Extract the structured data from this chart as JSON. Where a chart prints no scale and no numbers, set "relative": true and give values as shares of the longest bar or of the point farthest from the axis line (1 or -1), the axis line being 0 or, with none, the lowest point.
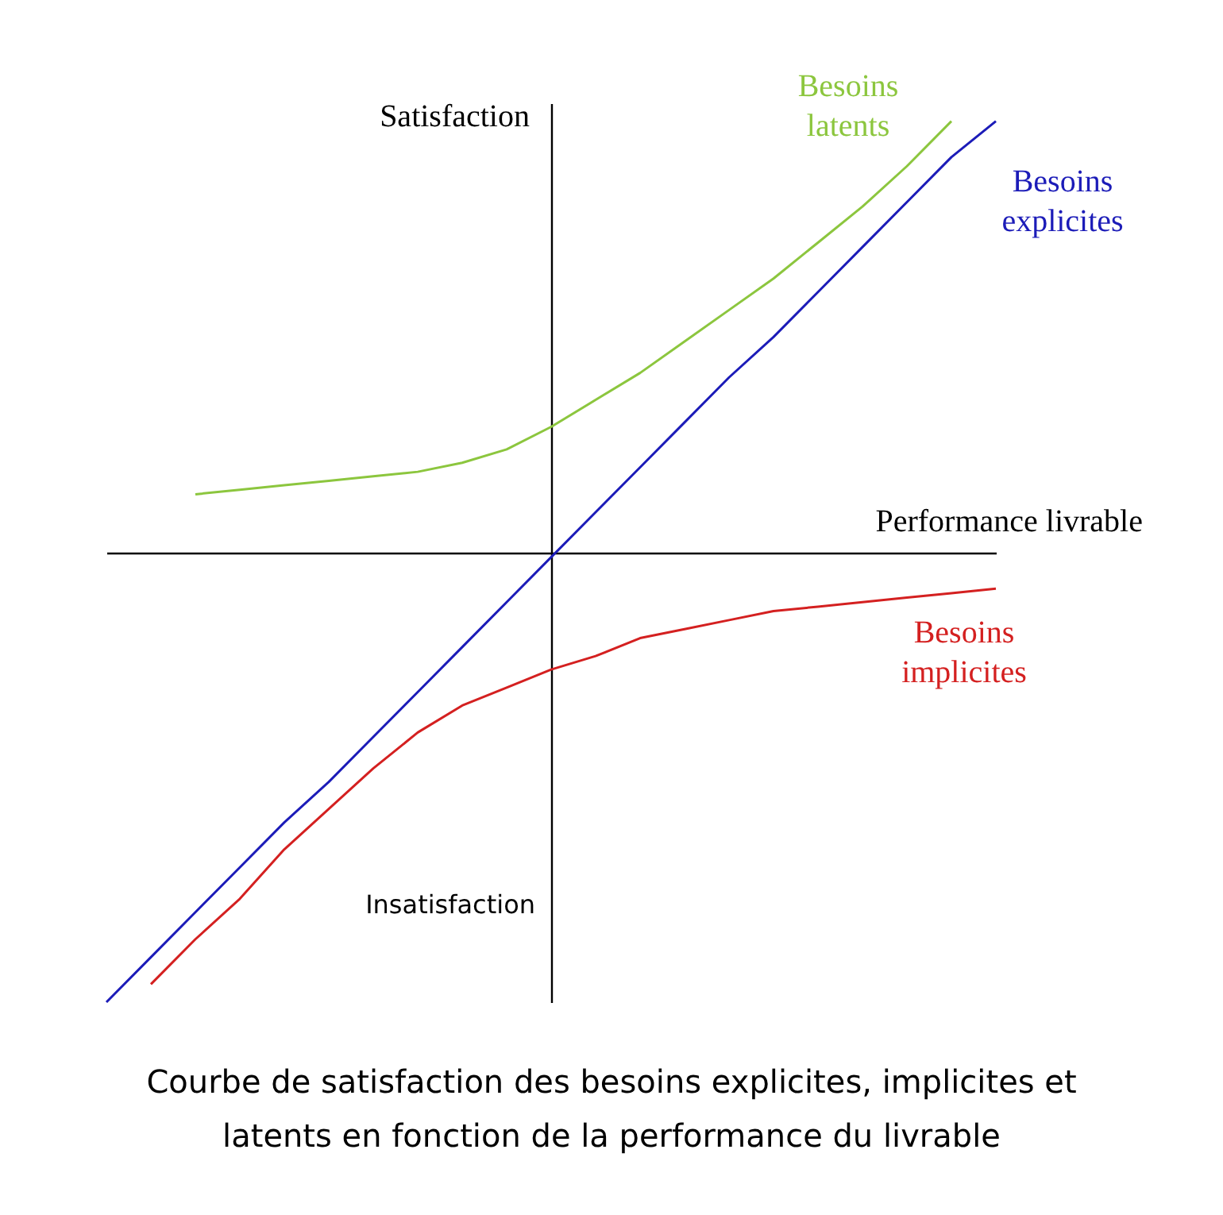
{
  "chart_data": {
    "type": "line",
    "relative": true,
    "legend": false,
    "grid": false,
    "marker": "none",
    "line_style": "solid",
    "xlabel": "Performance livrable",
    "ylabel": "Satisfaction",
    "annotations": [
      "Insatisfaction",
      "Courbe de satisfaction des besoins explicites, implicites et latents en fonction de la performance du livrable"
    ],
    "categories": [
      null,
      null,
      null,
      null,
      null,
      null,
      null,
      null,
      null,
      null,
      null,
      null,
      null,
      null,
      null,
      null,
      null,
      null,
      null,
      null,
      null
    ],
    "series": [
      {
        "name": "Besoins explicites",
        "color": "#1c1cb8",
        "values": [
          -1,
          -0.9,
          -0.8,
          -0.7,
          -0.6,
          -0.51,
          -0.41,
          -0.31,
          -0.21,
          -0.11,
          -0.01,
          0.09,
          0.19,
          0.29,
          0.39,
          0.48,
          0.58,
          0.68,
          0.78,
          0.88,
          0.96
        ]
      },
      {
        "name": "Besoins latents",
        "color": "#8cc63e",
        "values": [
          null,
          null,
          0.13,
          0.14,
          0.15,
          0.16,
          0.17,
          0.18,
          0.2,
          0.23,
          0.28,
          0.34,
          0.4,
          0.47,
          0.54,
          0.61,
          0.69,
          0.77,
          0.86,
          0.96,
          null
        ]
      },
      {
        "name": "Besoins implicites",
        "color": "#d42020",
        "values": [
          null,
          -0.96,
          -0.86,
          -0.77,
          -0.66,
          -0.57,
          -0.48,
          -0.4,
          -0.34,
          -0.3,
          -0.26,
          -0.23,
          -0.19,
          -0.17,
          -0.15,
          -0.13,
          -0.12,
          -0.11,
          -0.1,
          -0.09,
          -0.08
        ]
      }
    ]
  }
}
